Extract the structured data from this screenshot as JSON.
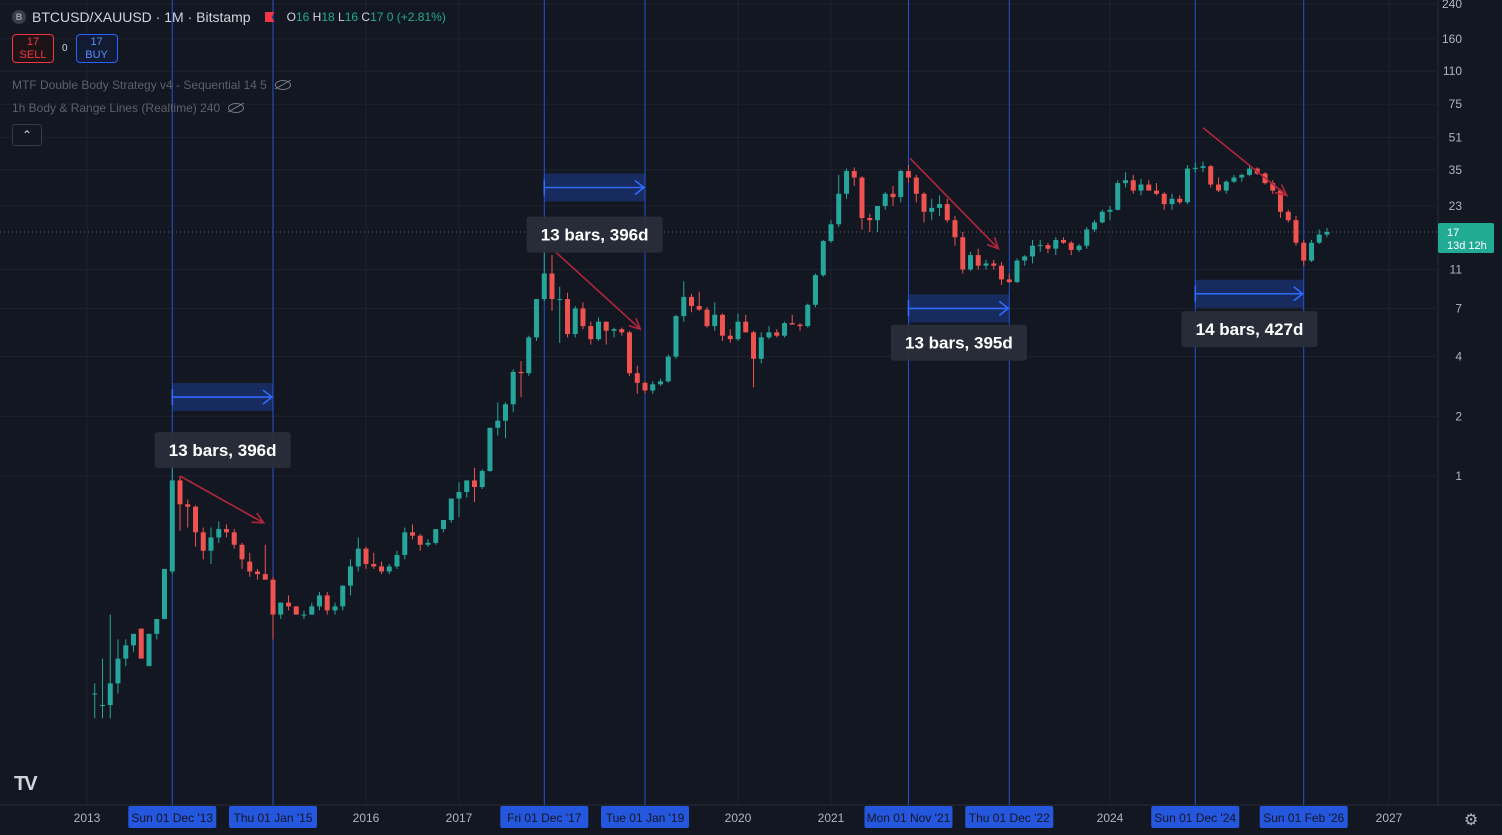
{
  "header": {
    "symbol_title": "BTCUSD/XAUUSD · 1M · Bitstamp",
    "logo_letter": "B",
    "ohlc": {
      "o_label": "O",
      "o": "16",
      "h_label": "H",
      "h": "18",
      "l_label": "L",
      "l": "16",
      "c_label": "C",
      "c": "17",
      "change": "0 (+2.81%)"
    }
  },
  "trade": {
    "sell_price": "17",
    "sell_label": "SELL",
    "spread": "0",
    "buy_price": "17",
    "buy_label": "BUY"
  },
  "indicators": [
    {
      "label": "MTF Double Body Strategy v4 - Sequential 14 5"
    },
    {
      "label": "1h Body & Range Lines (Realtime) 240"
    }
  ],
  "colors": {
    "background": "#131722",
    "bull": "#26a69a",
    "bear": "#ef5350",
    "vline": "#2962ff",
    "arrow": "#b2263c",
    "range": "#2962ff",
    "price_tag": "#22ab94"
  },
  "chart_data": {
    "type": "candlestick",
    "scale": "log",
    "grid": true,
    "y_ticks": [
      1,
      2,
      4,
      7,
      11,
      23,
      35,
      51,
      75,
      110,
      160,
      240
    ],
    "x_axis_labels": [
      "2013",
      "2016",
      "2017",
      "2020",
      "2021",
      "2024",
      "2027"
    ],
    "x_tick_dates": [
      2013.0,
      2016.0,
      2017.0,
      2020.0,
      2021.0,
      2024.0,
      2027.0
    ],
    "date_markers": [
      {
        "label": "Sun 01 Dec '13",
        "date": 2013.917
      },
      {
        "label": "Thu 01 Jan '15",
        "date": 2015.0
      },
      {
        "label": "Fri 01 Dec '17",
        "date": 2017.917
      },
      {
        "label": "Tue 01 Jan '19",
        "date": 2019.0
      },
      {
        "label": "Mon 01 Nov '21",
        "date": 2021.833
      },
      {
        "label": "Thu 01 Dec '22",
        "date": 2022.917
      },
      {
        "label": "Sun 01 Dec '24",
        "date": 2024.917
      },
      {
        "label": "Sun 01 Feb '26",
        "date": 2026.083
      }
    ],
    "current_price": {
      "value": 17,
      "countdown": "13d 12h"
    },
    "ranges": [
      {
        "label": "13 bars, 396d",
        "start": 2013.917,
        "end": 2015.0
      },
      {
        "label": "13 bars, 396d",
        "start": 2017.917,
        "end": 2019.0
      },
      {
        "label": "13 bars, 395d",
        "start": 2021.833,
        "end": 2022.917
      },
      {
        "label": "14 bars, 427d",
        "start": 2024.917,
        "end": 2026.083
      }
    ],
    "decline_arrows": [
      {
        "from": [
          2014.0,
          1.0
        ],
        "to": [
          2014.9,
          0.58
        ]
      },
      {
        "from": [
          2018.0,
          14.0
        ],
        "to": [
          2018.95,
          5.5
        ]
      },
      {
        "from": [
          2021.85,
          40.0
        ],
        "to": [
          2022.8,
          14.0
        ]
      },
      {
        "from": [
          2025.0,
          57.0
        ],
        "to": [
          2025.9,
          26.0
        ]
      }
    ],
    "candles": [
      [
        2013.083,
        0.08,
        0.09,
        0.06,
        0.08
      ],
      [
        2013.167,
        0.07,
        0.12,
        0.06,
        0.07
      ],
      [
        2013.25,
        0.07,
        0.2,
        0.06,
        0.09
      ],
      [
        2013.333,
        0.09,
        0.15,
        0.08,
        0.12
      ],
      [
        2013.417,
        0.12,
        0.15,
        0.11,
        0.14
      ],
      [
        2013.5,
        0.14,
        0.16,
        0.13,
        0.16
      ],
      [
        2013.583,
        0.17,
        0.17,
        0.12,
        0.12
      ],
      [
        2013.667,
        0.11,
        0.16,
        0.11,
        0.16
      ],
      [
        2013.75,
        0.16,
        0.19,
        0.15,
        0.19
      ],
      [
        2013.833,
        0.19,
        0.32,
        0.19,
        0.34
      ],
      [
        2013.917,
        0.33,
        1.1,
        0.32,
        0.95
      ],
      [
        2014.0,
        0.95,
        1.0,
        0.53,
        0.72
      ],
      [
        2014.083,
        0.72,
        0.76,
        0.55,
        0.7
      ],
      [
        2014.167,
        0.7,
        0.71,
        0.44,
        0.52
      ],
      [
        2014.25,
        0.52,
        0.55,
        0.38,
        0.42
      ],
      [
        2014.333,
        0.42,
        0.55,
        0.36,
        0.49
      ],
      [
        2014.417,
        0.49,
        0.59,
        0.46,
        0.54
      ],
      [
        2014.5,
        0.54,
        0.57,
        0.49,
        0.52
      ],
      [
        2014.583,
        0.52,
        0.54,
        0.43,
        0.45
      ],
      [
        2014.667,
        0.45,
        0.46,
        0.34,
        0.38
      ],
      [
        2014.75,
        0.37,
        0.41,
        0.31,
        0.33
      ],
      [
        2014.833,
        0.33,
        0.34,
        0.3,
        0.32
      ],
      [
        2014.917,
        0.32,
        0.45,
        0.3,
        0.3
      ],
      [
        2015.0,
        0.3,
        0.31,
        0.15,
        0.2
      ],
      [
        2015.083,
        0.2,
        0.23,
        0.19,
        0.23
      ],
      [
        2015.167,
        0.23,
        0.25,
        0.21,
        0.22
      ],
      [
        2015.25,
        0.22,
        0.22,
        0.2,
        0.2
      ],
      [
        2015.333,
        0.2,
        0.21,
        0.19,
        0.2
      ],
      [
        2015.417,
        0.2,
        0.23,
        0.2,
        0.22
      ],
      [
        2015.5,
        0.22,
        0.26,
        0.21,
        0.25
      ],
      [
        2015.583,
        0.25,
        0.26,
        0.2,
        0.21
      ],
      [
        2015.667,
        0.21,
        0.23,
        0.2,
        0.22
      ],
      [
        2015.75,
        0.22,
        0.28,
        0.21,
        0.28
      ],
      [
        2015.833,
        0.28,
        0.38,
        0.25,
        0.35
      ],
      [
        2015.917,
        0.35,
        0.49,
        0.33,
        0.43
      ],
      [
        2016.0,
        0.43,
        0.44,
        0.34,
        0.36
      ],
      [
        2016.083,
        0.36,
        0.41,
        0.34,
        0.35
      ],
      [
        2016.167,
        0.35,
        0.37,
        0.32,
        0.33
      ],
      [
        2016.25,
        0.33,
        0.36,
        0.32,
        0.35
      ],
      [
        2016.333,
        0.35,
        0.42,
        0.34,
        0.4
      ],
      [
        2016.417,
        0.4,
        0.55,
        0.38,
        0.52
      ],
      [
        2016.5,
        0.52,
        0.57,
        0.48,
        0.5
      ],
      [
        2016.583,
        0.5,
        0.51,
        0.42,
        0.45
      ],
      [
        2016.667,
        0.45,
        0.48,
        0.44,
        0.46
      ],
      [
        2016.75,
        0.46,
        0.53,
        0.45,
        0.54
      ],
      [
        2016.833,
        0.54,
        0.6,
        0.52,
        0.6
      ],
      [
        2016.917,
        0.6,
        0.77,
        0.58,
        0.77
      ],
      [
        2017.0,
        0.77,
        0.93,
        0.62,
        0.83
      ],
      [
        2017.083,
        0.83,
        0.95,
        0.78,
        0.95
      ],
      [
        2017.167,
        0.95,
        1.1,
        0.74,
        0.88
      ],
      [
        2017.25,
        0.88,
        1.08,
        0.86,
        1.06
      ],
      [
        2017.333,
        1.06,
        1.75,
        1.05,
        1.75
      ],
      [
        2017.417,
        1.75,
        2.35,
        1.6,
        1.9
      ],
      [
        2017.5,
        1.9,
        2.35,
        1.55,
        2.3
      ],
      [
        2017.583,
        2.3,
        3.45,
        2.1,
        3.35
      ],
      [
        2017.667,
        3.35,
        3.8,
        2.5,
        3.3
      ],
      [
        2017.75,
        3.3,
        5.1,
        3.2,
        5.0
      ],
      [
        2017.833,
        5.0,
        7.8,
        4.8,
        7.8
      ],
      [
        2017.917,
        7.8,
        14.5,
        7.6,
        10.5
      ],
      [
        2018.0,
        10.5,
        13.0,
        6.8,
        7.8
      ],
      [
        2018.083,
        7.8,
        9.0,
        4.7,
        7.8
      ],
      [
        2018.167,
        7.8,
        8.4,
        5.0,
        5.2
      ],
      [
        2018.25,
        5.2,
        7.2,
        5.0,
        7.0
      ],
      [
        2018.333,
        7.0,
        7.5,
        5.5,
        5.7
      ],
      [
        2018.417,
        5.7,
        6.0,
        4.6,
        4.9
      ],
      [
        2018.5,
        4.9,
        6.3,
        4.8,
        6.0
      ],
      [
        2018.583,
        6.0,
        6.0,
        4.6,
        5.4
      ],
      [
        2018.667,
        5.4,
        5.6,
        5.0,
        5.5
      ],
      [
        2018.75,
        5.5,
        5.6,
        5.1,
        5.3
      ],
      [
        2018.833,
        5.3,
        5.4,
        3.2,
        3.3
      ],
      [
        2018.917,
        3.3,
        3.6,
        2.6,
        2.95
      ],
      [
        2019.0,
        2.95,
        3.0,
        2.6,
        2.7
      ],
      [
        2019.083,
        2.7,
        3.0,
        2.6,
        2.9
      ],
      [
        2019.167,
        2.9,
        3.1,
        2.85,
        3.0
      ],
      [
        2019.25,
        3.0,
        4.1,
        2.95,
        4.0
      ],
      [
        2019.333,
        4.0,
        6.5,
        3.9,
        6.4
      ],
      [
        2019.417,
        6.4,
        9.6,
        6.0,
        8.0
      ],
      [
        2019.5,
        8.0,
        8.3,
        6.7,
        7.2
      ],
      [
        2019.583,
        7.2,
        8.5,
        6.8,
        6.9
      ],
      [
        2019.667,
        6.9,
        7.1,
        5.6,
        5.7
      ],
      [
        2019.75,
        5.7,
        7.5,
        5.4,
        6.5
      ],
      [
        2019.833,
        6.5,
        6.6,
        4.8,
        5.1
      ],
      [
        2019.917,
        5.1,
        5.5,
        4.7,
        4.9
      ],
      [
        2020.0,
        4.9,
        6.6,
        4.8,
        6.0
      ],
      [
        2020.083,
        6.0,
        6.5,
        5.3,
        5.3
      ],
      [
        2020.167,
        5.3,
        5.4,
        2.8,
        3.9
      ],
      [
        2020.25,
        3.9,
        5.3,
        3.7,
        5.0
      ],
      [
        2020.333,
        5.0,
        5.7,
        4.9,
        5.3
      ],
      [
        2020.417,
        5.3,
        5.5,
        5.0,
        5.1
      ],
      [
        2020.5,
        5.1,
        6.0,
        5.0,
        5.9
      ],
      [
        2020.583,
        5.9,
        6.5,
        5.8,
        5.8
      ],
      [
        2020.667,
        5.8,
        5.9,
        5.4,
        5.7
      ],
      [
        2020.75,
        5.7,
        7.4,
        5.6,
        7.3
      ],
      [
        2020.833,
        7.3,
        10.5,
        7.1,
        10.3
      ],
      [
        2020.917,
        10.3,
        15.5,
        10.1,
        15.3
      ],
      [
        2021.0,
        15.3,
        19.5,
        15.0,
        18.6
      ],
      [
        2021.083,
        18.6,
        33.0,
        18.0,
        26.5
      ],
      [
        2021.167,
        26.5,
        35.5,
        25.0,
        34.5
      ],
      [
        2021.25,
        34.5,
        36.0,
        29.0,
        32.0
      ],
      [
        2021.333,
        32.0,
        32.5,
        17.5,
        20.0
      ],
      [
        2021.417,
        20.0,
        21.0,
        17.0,
        19.5
      ],
      [
        2021.5,
        19.5,
        23.0,
        17.0,
        23.0
      ],
      [
        2021.583,
        23.0,
        27.0,
        22.0,
        26.5
      ],
      [
        2021.667,
        26.5,
        29.0,
        23.0,
        25.5
      ],
      [
        2021.75,
        25.5,
        35.0,
        24.0,
        34.5
      ],
      [
        2021.833,
        34.5,
        37.0,
        30.0,
        32.0
      ],
      [
        2021.917,
        32.0,
        33.0,
        24.0,
        26.5
      ],
      [
        2022.0,
        26.5,
        27.0,
        19.0,
        21.5
      ],
      [
        2022.083,
        21.5,
        25.0,
        19.5,
        22.5
      ],
      [
        2022.167,
        22.5,
        26.0,
        20.5,
        23.5
      ],
      [
        2022.25,
        23.5,
        25.0,
        19.0,
        19.5
      ],
      [
        2022.333,
        19.5,
        20.5,
        14.5,
        16.0
      ],
      [
        2022.417,
        16.0,
        17.0,
        10.5,
        11.0
      ],
      [
        2022.5,
        11.0,
        13.5,
        10.8,
        13.0
      ],
      [
        2022.583,
        13.0,
        14.0,
        11.0,
        11.5
      ],
      [
        2022.667,
        11.5,
        12.3,
        11.0,
        11.8
      ],
      [
        2022.75,
        11.8,
        12.3,
        11.0,
        11.5
      ],
      [
        2022.833,
        11.5,
        12.0,
        9.2,
        9.8
      ],
      [
        2022.917,
        9.8,
        10.5,
        9.4,
        9.5
      ],
      [
        2023.0,
        9.5,
        12.5,
        9.4,
        12.2
      ],
      [
        2023.083,
        12.2,
        13.0,
        11.5,
        12.8
      ],
      [
        2023.167,
        12.8,
        15.5,
        11.8,
        14.5
      ],
      [
        2023.25,
        14.5,
        15.5,
        13.5,
        14.6
      ],
      [
        2023.333,
        14.6,
        15.0,
        13.3,
        14.0
      ],
      [
        2023.417,
        14.0,
        16.0,
        13.0,
        15.5
      ],
      [
        2023.5,
        15.5,
        16.0,
        14.8,
        15.0
      ],
      [
        2023.583,
        15.0,
        15.3,
        13.0,
        13.8
      ],
      [
        2023.667,
        13.8,
        14.8,
        13.5,
        14.5
      ],
      [
        2023.75,
        14.5,
        18.0,
        14.0,
        17.5
      ],
      [
        2023.833,
        17.5,
        19.5,
        17.0,
        19.0
      ],
      [
        2023.917,
        19.0,
        22.0,
        18.8,
        21.5
      ],
      [
        2024.0,
        21.5,
        23.0,
        19.5,
        22.0
      ],
      [
        2024.083,
        22.0,
        31.0,
        21.8,
        30.0
      ],
      [
        2024.167,
        30.0,
        34.0,
        28.5,
        31.0
      ],
      [
        2024.25,
        31.0,
        33.0,
        26.5,
        27.5
      ],
      [
        2024.333,
        27.5,
        31.5,
        26.0,
        29.5
      ],
      [
        2024.417,
        29.5,
        31.0,
        27.5,
        27.5
      ],
      [
        2024.5,
        27.5,
        30.0,
        26.0,
        26.5
      ],
      [
        2024.583,
        26.5,
        27.0,
        22.0,
        23.5
      ],
      [
        2024.667,
        23.5,
        26.5,
        22.0,
        25.0
      ],
      [
        2024.75,
        25.0,
        26.0,
        23.5,
        24.0
      ],
      [
        2024.833,
        24.0,
        37.0,
        23.5,
        35.5
      ],
      [
        2024.917,
        35.5,
        38.0,
        34.0,
        35.8
      ],
      [
        2025.0,
        35.8,
        38.5,
        34.0,
        36.5
      ],
      [
        2025.083,
        36.5,
        37.0,
        28.5,
        29.5
      ],
      [
        2025.167,
        29.5,
        32.0,
        27.0,
        27.5
      ],
      [
        2025.25,
        27.5,
        31.0,
        26.5,
        30.5
      ],
      [
        2025.333,
        30.5,
        33.0,
        30.0,
        32.0
      ],
      [
        2025.417,
        32.0,
        33.5,
        30.5,
        33.0
      ],
      [
        2025.5,
        33.0,
        36.5,
        32.5,
        35.5
      ],
      [
        2025.583,
        35.5,
        36.0,
        33.0,
        33.5
      ],
      [
        2025.667,
        33.5,
        34.0,
        29.5,
        30.0
      ],
      [
        2025.75,
        30.0,
        31.0,
        26.5,
        27.5
      ],
      [
        2025.833,
        27.5,
        28.0,
        20.0,
        21.5
      ],
      [
        2025.917,
        21.5,
        22.0,
        19.0,
        19.5
      ],
      [
        2026.0,
        19.5,
        20.5,
        14.5,
        15.0
      ],
      [
        2026.083,
        15.0,
        15.5,
        11.5,
        12.2
      ],
      [
        2026.167,
        12.2,
        15.5,
        12.0,
        15.0
      ],
      [
        2026.25,
        15.0,
        17.5,
        14.8,
        16.5
      ],
      [
        2026.333,
        16.5,
        17.8,
        16.0,
        17.0
      ]
    ]
  }
}
